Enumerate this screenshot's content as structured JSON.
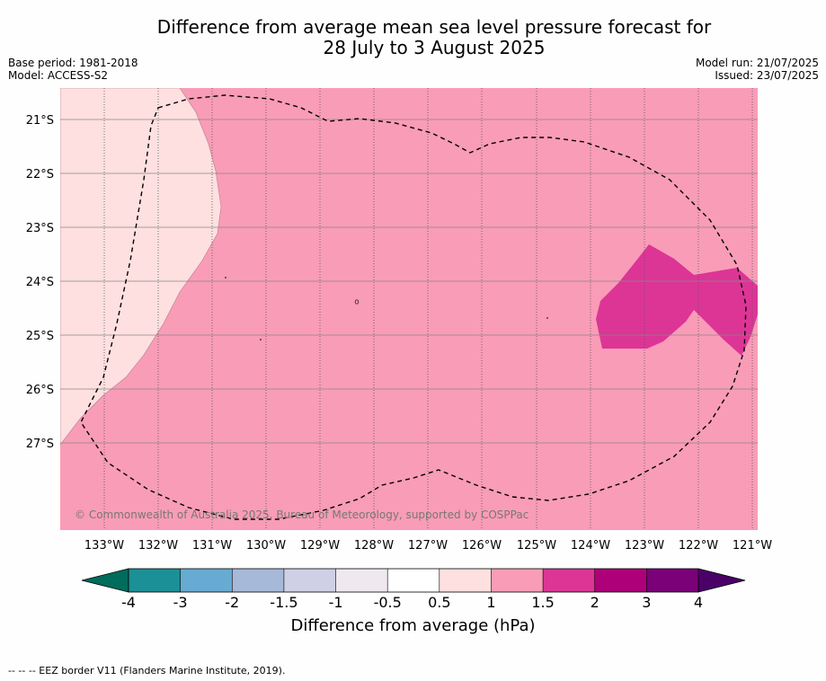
{
  "title_line1": "Difference from average mean sea level pressure forecast for",
  "title_line2": "28 July to 3 August 2025",
  "meta": {
    "base_period": "Base period: 1981-2018",
    "model": "Model: ACCESS-S2",
    "model_run": "Model run: 21/07/2025",
    "issued": "Issued: 23/07/2025"
  },
  "map": {
    "lon_labels": [
      "133°W",
      "132°W",
      "131°W",
      "130°W",
      "129°W",
      "128°W",
      "127°W",
      "126°W",
      "125°W",
      "124°W",
      "123°W",
      "122°W",
      "121°W"
    ],
    "lat_labels": [
      "21°S",
      "22°S",
      "23°S",
      "24°S",
      "25°S",
      "26°S",
      "27°S"
    ],
    "copyright": "© Commonwealth of Australia 2025, Bureau of Meteorology, supported by COSPPac",
    "colors": {
      "below_0_5_to_1": "#fde0df",
      "range_1_to_1_5": "#f99cb7",
      "range_1_5_to_2": "#dc3596"
    }
  },
  "colorbar": {
    "title": "Difference from average (hPa)",
    "labels": [
      "-4",
      "-3",
      "-2",
      "-1.5",
      "-1",
      "-0.5",
      "0.5",
      "1",
      "1.5",
      "2",
      "3",
      "4"
    ],
    "colors": [
      "#1b9096",
      "#67abd2",
      "#a7b9d9",
      "#cfd0e6",
      "#efe9ef",
      "#ffffff",
      "#fde0df",
      "#f99cb7",
      "#dc3596",
      "#ae0179",
      "#7a0177"
    ],
    "under_color": "#006c5c",
    "over_color": "#4b0068"
  },
  "footnote": "-- -- -- EEZ border V11 (Flanders Marine Institute, 2019)."
}
